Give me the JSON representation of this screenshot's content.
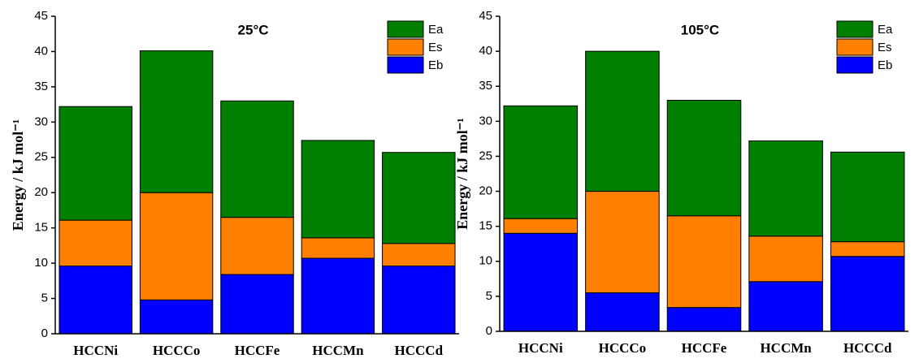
{
  "chart_data": [
    {
      "type": "stacked_bar",
      "title": "25°C",
      "y_label": "Energy / kJ mol⁻¹",
      "categories": [
        "HCCNi",
        "HCCCo",
        "HCCFe",
        "HCCMn",
        "HCCCd"
      ],
      "series": [
        {
          "name": "Eb",
          "color": "#0000ff",
          "values": [
            9.6,
            4.8,
            8.4,
            10.7,
            9.6
          ]
        },
        {
          "name": "Es",
          "color": "#ff7f00",
          "values": [
            6.5,
            15.2,
            8.1,
            2.9,
            3.2
          ]
        },
        {
          "name": "Ea",
          "color": "#007f00",
          "values": [
            16.1,
            20.1,
            16.5,
            13.8,
            12.9
          ]
        }
      ],
      "ylim": [
        0,
        45
      ],
      "yticks": [
        0,
        5,
        10,
        15,
        20,
        25,
        30,
        35,
        40,
        45
      ],
      "legend": "upper right"
    },
    {
      "type": "stacked_bar",
      "title": "105°C",
      "y_label": "Energy / kJ mol⁻¹",
      "categories": [
        "HCCNi",
        "HCCCo",
        "HCCFe",
        "HCCMn",
        "HCCCd"
      ],
      "series": [
        {
          "name": "Eb",
          "color": "#0000ff",
          "values": [
            14.0,
            5.5,
            3.4,
            7.1,
            10.7
          ]
        },
        {
          "name": "Es",
          "color": "#ff7f00",
          "values": [
            2.1,
            14.5,
            13.1,
            6.5,
            2.1
          ]
        },
        {
          "name": "Ea",
          "color": "#007f00",
          "values": [
            16.1,
            20.0,
            16.5,
            13.6,
            12.8
          ]
        }
      ],
      "ylim": [
        0,
        45
      ],
      "yticks": [
        0,
        5,
        10,
        15,
        20,
        25,
        30,
        35,
        40,
        45
      ],
      "legend": "upper right"
    }
  ]
}
